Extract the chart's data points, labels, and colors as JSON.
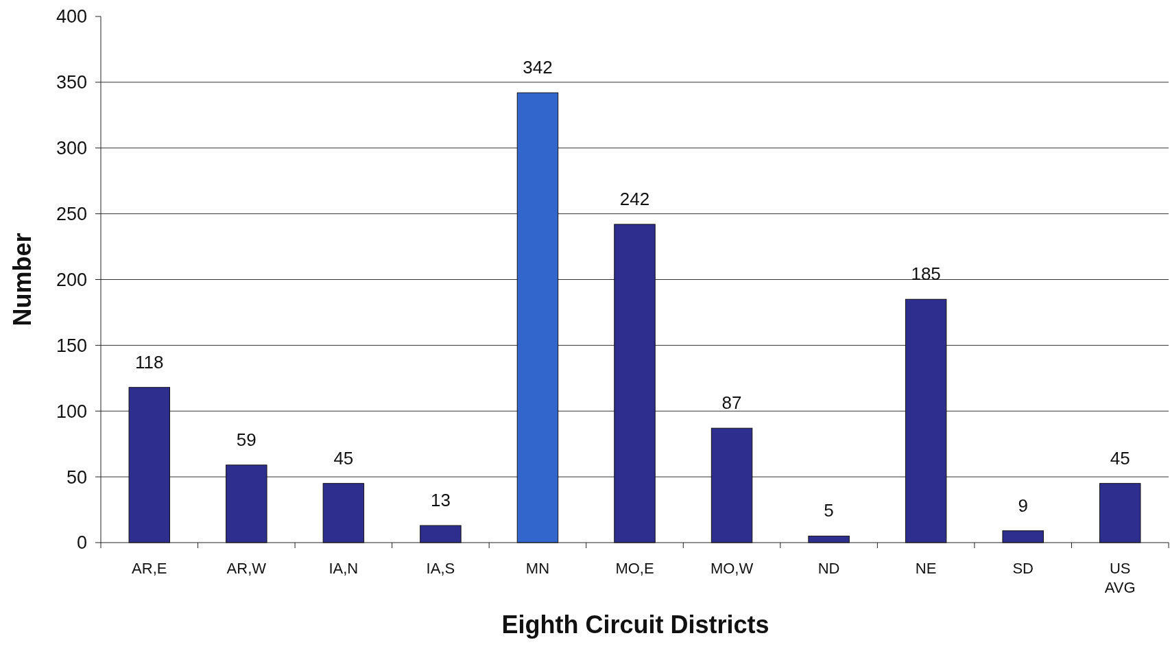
{
  "chart_data": {
    "type": "bar",
    "xlabel": "Eighth Circuit Districts",
    "ylabel": "Number",
    "categories": [
      "AR,E",
      "AR,W",
      "IA,N",
      "IA,S",
      "MN",
      "MO,E",
      "MO,W",
      "ND",
      "NE",
      "SD",
      "US AVG"
    ],
    "values": [
      118,
      59,
      45,
      13,
      342,
      242,
      87,
      5,
      185,
      9,
      45
    ],
    "colors": [
      "#2e2e8e",
      "#2e2e8e",
      "#2e2e8e",
      "#2e2e8e",
      "#3366cc",
      "#2e2e8e",
      "#2e2e8e",
      "#2e2e8e",
      "#2e2e8e",
      "#2e2e8e",
      "#2e2e8e"
    ],
    "ylim": [
      0,
      400
    ],
    "yticks": [
      0,
      50,
      100,
      150,
      200,
      250,
      300,
      350,
      400
    ],
    "grid": "y",
    "data_labels": true
  }
}
